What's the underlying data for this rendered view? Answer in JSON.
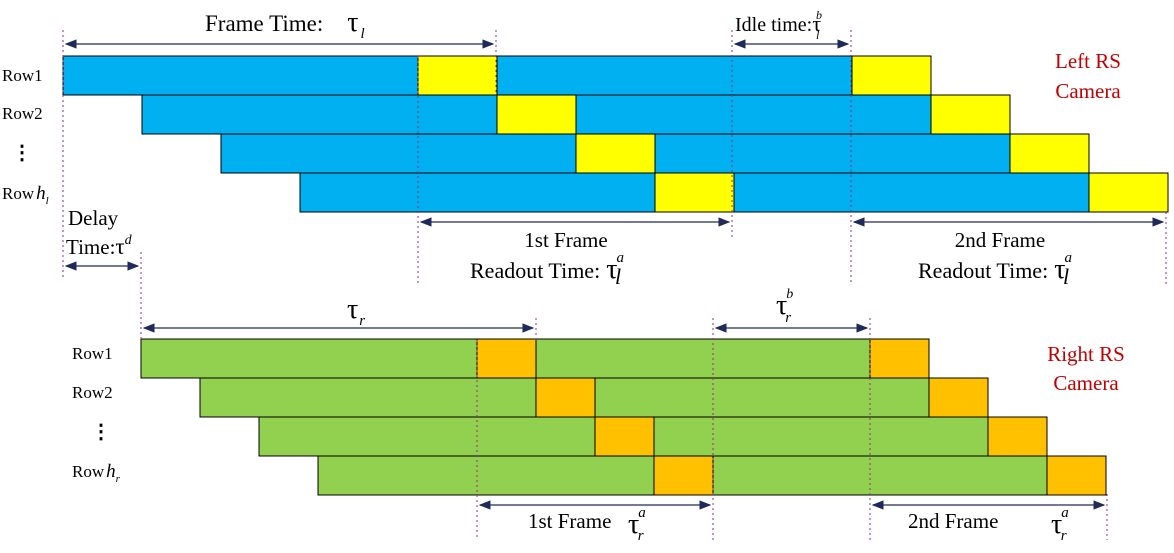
{
  "colors": {
    "left_exposure": "#00b0f0",
    "left_readout": "#ffff00",
    "right_exposure": "#92d050",
    "right_readout": "#ffc000",
    "camera_label": "#c00000",
    "guide": "#9a2a8a",
    "arrow": "#1f2a5a"
  },
  "left_camera": {
    "label_line1": "Left RS",
    "label_line2": "Camera",
    "rows": [
      {
        "label": "Row1"
      },
      {
        "label": "Row2"
      },
      {
        "label": "⋮"
      },
      {
        "label": "Row",
        "italic": "h",
        "sub": "l"
      }
    ],
    "frame_time": {
      "label": "Frame Time:",
      "symbol": "τ",
      "sub": "l"
    },
    "idle_time": {
      "label": "Idle time:",
      "symbol": "τ",
      "sub": "l",
      "sup": "b"
    },
    "first_frame": {
      "line1": "1st Frame",
      "line2": "Readout Time:",
      "symbol": "τ",
      "sub": "l",
      "sup": "a"
    },
    "second_frame": {
      "line1": "2nd Frame",
      "line2": "Readout Time:",
      "symbol": "τ",
      "sub": "l",
      "sup": "a"
    }
  },
  "delay": {
    "line1": "Delay",
    "line2": "Time:",
    "symbol": "τ",
    "sup": "d"
  },
  "right_camera": {
    "label_line1": "Right RS",
    "label_line2": "Camera",
    "rows": [
      {
        "label": "Row1"
      },
      {
        "label": "Row2"
      },
      {
        "label": "⋮"
      },
      {
        "label": "Row",
        "italic": "h",
        "sub": "r"
      }
    ],
    "frame_time": {
      "symbol": "τ",
      "sub": "r"
    },
    "idle_time": {
      "symbol": "τ",
      "sub": "r",
      "sup": "b"
    },
    "first_frame": {
      "line1": "1st Frame",
      "symbol": "τ",
      "sub": "r",
      "sup": "a"
    },
    "second_frame": {
      "line1": "2nd Frame",
      "symbol": "τ",
      "sub": "r",
      "sup": "a"
    }
  }
}
